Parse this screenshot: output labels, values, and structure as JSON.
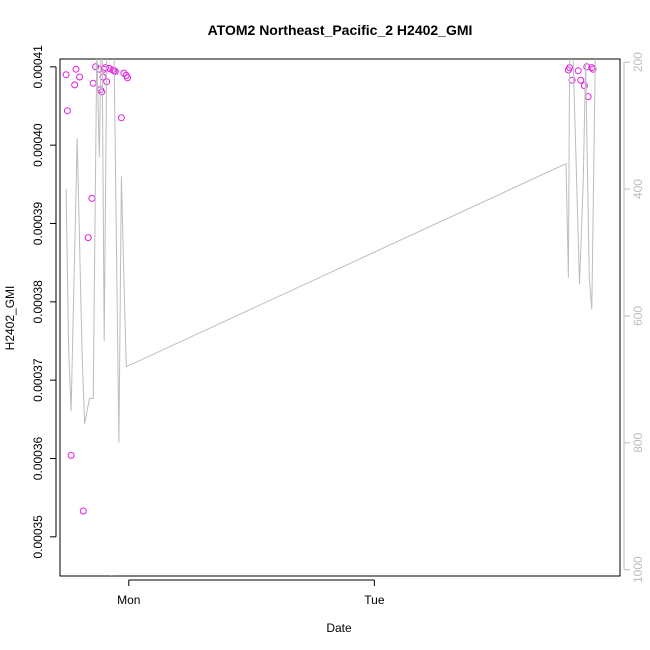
{
  "chart_data": {
    "type": "scatter",
    "title": "ATOM2 Northeast_Pacific_2 H2402_GMI",
    "xlabel": "Date",
    "ylabel": "H2402_GMI",
    "x_tick_labels": [
      "Mon",
      "Tue"
    ],
    "y_ticks": [
      0.00035,
      0.00036,
      0.00037,
      0.00038,
      0.00039,
      0.0004,
      0.00041
    ],
    "y_tick_labels": [
      "0.00035",
      "0.00036",
      "0.00037",
      "0.00038",
      "0.00039",
      "0.00040",
      "0.00041"
    ],
    "ylim": [
      0.000345,
      0.000411
    ],
    "xlim_hours": [
      -2.8,
      20.0
    ],
    "x_ticks_hours": [
      0,
      10
    ],
    "right_axis": {
      "label": "",
      "ticks": [
        200,
        400,
        600,
        800,
        1000
      ],
      "tick_labels": [
        "200",
        "400",
        "600",
        "800",
        "1000"
      ],
      "lim": [
        195,
        1010
      ],
      "reversed": true,
      "color": "#bdbdbd"
    },
    "series": [
      {
        "kind": "points",
        "color": "#e61ce6",
        "x": [
          -2.55,
          -2.5,
          -2.35,
          -2.2,
          -2.15,
          -2.0,
          -1.85,
          -1.65,
          -1.5,
          -1.45,
          -1.35,
          -1.2,
          -1.15,
          -1.1,
          -1.05,
          -1.0,
          -0.95,
          -0.9,
          -0.8,
          -0.7,
          -0.65,
          -0.6,
          -0.55,
          -0.3,
          -0.2,
          -0.1,
          -0.05,
          17.9,
          17.95,
          18.05,
          18.3,
          18.4,
          18.55,
          18.65,
          18.7,
          18.85,
          18.9
        ],
        "y": [
          0.000409,
          0.0004044,
          0.0003604,
          0.0004077,
          0.0004097,
          0.0004087,
          0.0003533,
          0.0003882,
          0.0003932,
          0.0004079,
          0.00041,
          0.0004097,
          0.0004071,
          0.0004068,
          0.0004087,
          0.0004097,
          0.0004099,
          0.0004081,
          0.0004098,
          0.0003446,
          0.0004096,
          0.0004095,
          0.0004094,
          0.0004035,
          0.0004092,
          0.0004089,
          0.0004086,
          0.0004096,
          0.0004099,
          0.0004083,
          0.0004095,
          0.0004083,
          0.0004076,
          0.00041,
          0.0004062,
          0.0004099,
          0.0004097
        ]
      },
      {
        "kind": "line",
        "color": "#bdbdbd",
        "axis": "right",
        "x": [
          -2.55,
          -2.45,
          -2.35,
          -2.1,
          -1.9,
          -1.8,
          -1.6,
          -1.45,
          -1.3,
          -1.2,
          -1.1,
          -1.0,
          -0.9,
          -0.8,
          -0.75,
          -0.7,
          -0.6,
          -0.4,
          -0.3,
          -0.2,
          -0.1,
          17.8,
          17.9,
          17.95,
          18.05,
          18.2,
          18.35,
          18.5,
          18.6,
          18.75,
          18.85,
          19.0
        ],
        "y": [
          400,
          650,
          750,
          320,
          660,
          770,
          730,
          730,
          180,
          350,
          100,
          640,
          200,
          150,
          180,
          160,
          180,
          800,
          380,
          540,
          680,
          360,
          540,
          200,
          140,
          340,
          550,
          390,
          200,
          540,
          590,
          180
        ]
      }
    ],
    "grid": false,
    "legend": "none"
  }
}
